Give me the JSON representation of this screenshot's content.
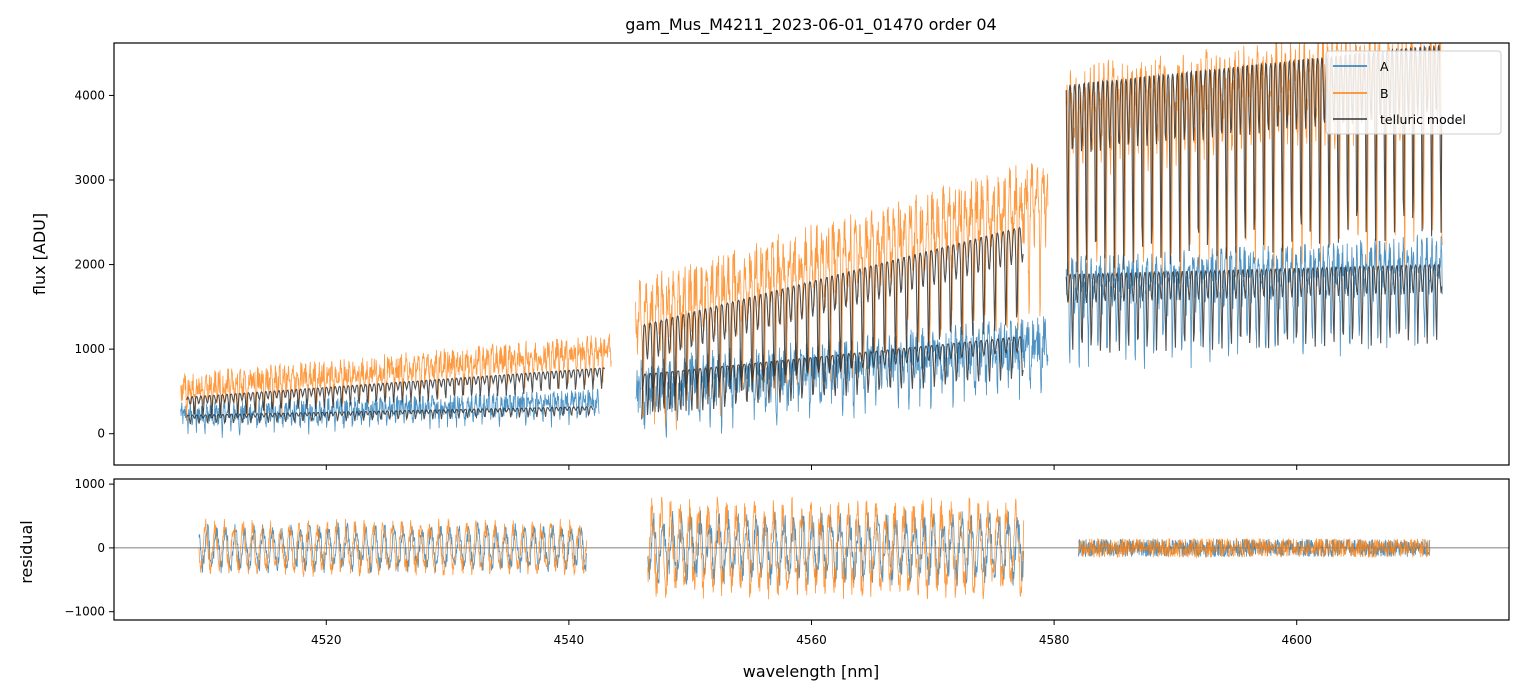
{
  "chart_data": {
    "type": "line",
    "title": "gam_Mus_M4211_2023-06-01_01470  order 04",
    "xlabel": "wavelength [nm]",
    "x_ticks": [
      4520,
      4540,
      4560,
      4580,
      4600
    ],
    "x_tick_labels": [
      "4520",
      "4540",
      "4560",
      "4580",
      "4600"
    ],
    "xlim": [
      4502.5,
      4617.5
    ],
    "colors": {
      "A": "#1f77b4",
      "B": "#ff7f0e",
      "telluric": "#333333"
    },
    "top_panel": {
      "ylabel": "flux [ADU]",
      "ylim": [
        -370,
        4620
      ],
      "y_ticks": [
        0,
        1000,
        2000,
        3000,
        4000
      ],
      "y_tick_labels": [
        "0",
        "1000",
        "2000",
        "3000",
        "4000"
      ],
      "legend": {
        "placement": "top-right",
        "entries": [
          {
            "key": "A",
            "label": "A"
          },
          {
            "key": "B",
            "label": "B"
          },
          {
            "key": "telluric",
            "label": "telluric model"
          }
        ]
      },
      "series": [
        {
          "name": "A",
          "segments": [
            {
              "x_range": [
                4508,
                4542.5
              ],
              "baseline": 150,
              "lines_per_nm": 1.4,
              "peak": 420,
              "depth": 380,
              "noise": 120
            },
            {
              "x_range": [
                4545.5,
                4579.5
              ],
              "baseline": 300,
              "lines_per_nm": 1.1,
              "peak": 1150,
              "depth": 900,
              "noise": 260
            },
            {
              "x_range": [
                4581,
                4612
              ],
              "baseline": 1700,
              "lines_per_nm": 1.3,
              "peak": 2150,
              "depth": 1800,
              "noise": 220
            }
          ]
        },
        {
          "name": "B",
          "segments": [
            {
              "x_range": [
                4508,
                4543.5
              ],
              "baseline": 250,
              "lines_per_nm": 1.4,
              "peak": 1050,
              "depth": 600,
              "noise": 150
            },
            {
              "x_range": [
                4545.5,
                4579.5
              ],
              "baseline": 600,
              "lines_per_nm": 1.1,
              "peak": 3000,
              "depth": 2600,
              "noise": 300
            },
            {
              "x_range": [
                4581,
                4612
              ],
              "baseline": 3700,
              "lines_per_nm": 1.3,
              "peak": 4620,
              "depth": 4200,
              "noise": 300
            }
          ]
        },
        {
          "name": "telluric model",
          "segments": [
            {
              "x_range": [
                4508.5,
                4543
              ],
              "baseline": 200,
              "lines_per_nm": 1.4,
              "peak": 780,
              "depth": 450,
              "noise": 0
            },
            {
              "x_range": [
                4546,
                4577.5
              ],
              "baseline": 500,
              "lines_per_nm": 1.1,
              "peak": 2450,
              "depth": 2100,
              "noise": 0
            },
            {
              "x_range": [
                4581,
                4612
              ],
              "baseline": 3800,
              "lines_per_nm": 1.3,
              "peak": 4600,
              "depth": 4100,
              "noise": 0
            },
            {
              "x_range": [
                4508.5,
                4542
              ],
              "baseline": 150,
              "lines_per_nm": 1.4,
              "peak": 320,
              "depth": 200,
              "noise": 0
            },
            {
              "x_range": [
                4546,
                4577.5
              ],
              "baseline": 400,
              "lines_per_nm": 1.1,
              "peak": 1150,
              "depth": 900,
              "noise": 0
            },
            {
              "x_range": [
                4581,
                4612
              ],
              "baseline": 1800,
              "lines_per_nm": 1.3,
              "peak": 2000,
              "depth": 1700,
              "noise": 0
            }
          ]
        }
      ]
    },
    "bottom_panel": {
      "ylabel": "residual",
      "ylim": [
        -1130,
        1080
      ],
      "y_ticks": [
        -1000,
        0,
        1000
      ],
      "y_tick_labels": [
        "−1000",
        "0",
        "1000"
      ],
      "zero_line": 0,
      "series": [
        {
          "name": "A",
          "segments": [
            {
              "x_range": [
                4509.5,
                4541.5
              ],
              "amplitude": 350,
              "noise": 120
            },
            {
              "x_range": [
                4546.5,
                4577.5
              ],
              "amplitude": 500,
              "noise": 200
            },
            {
              "x_range": [
                4582,
                4611
              ],
              "amplitude": 0,
              "noise": 140
            }
          ]
        },
        {
          "name": "B",
          "segments": [
            {
              "x_range": [
                4509.5,
                4541.5
              ],
              "amplitude": 400,
              "noise": 140
            },
            {
              "x_range": [
                4546.5,
                4577.5
              ],
              "amplitude": 700,
              "noise": 260
            },
            {
              "x_range": [
                4582,
                4611
              ],
              "amplitude": 0,
              "noise": 150
            }
          ]
        }
      ]
    }
  }
}
